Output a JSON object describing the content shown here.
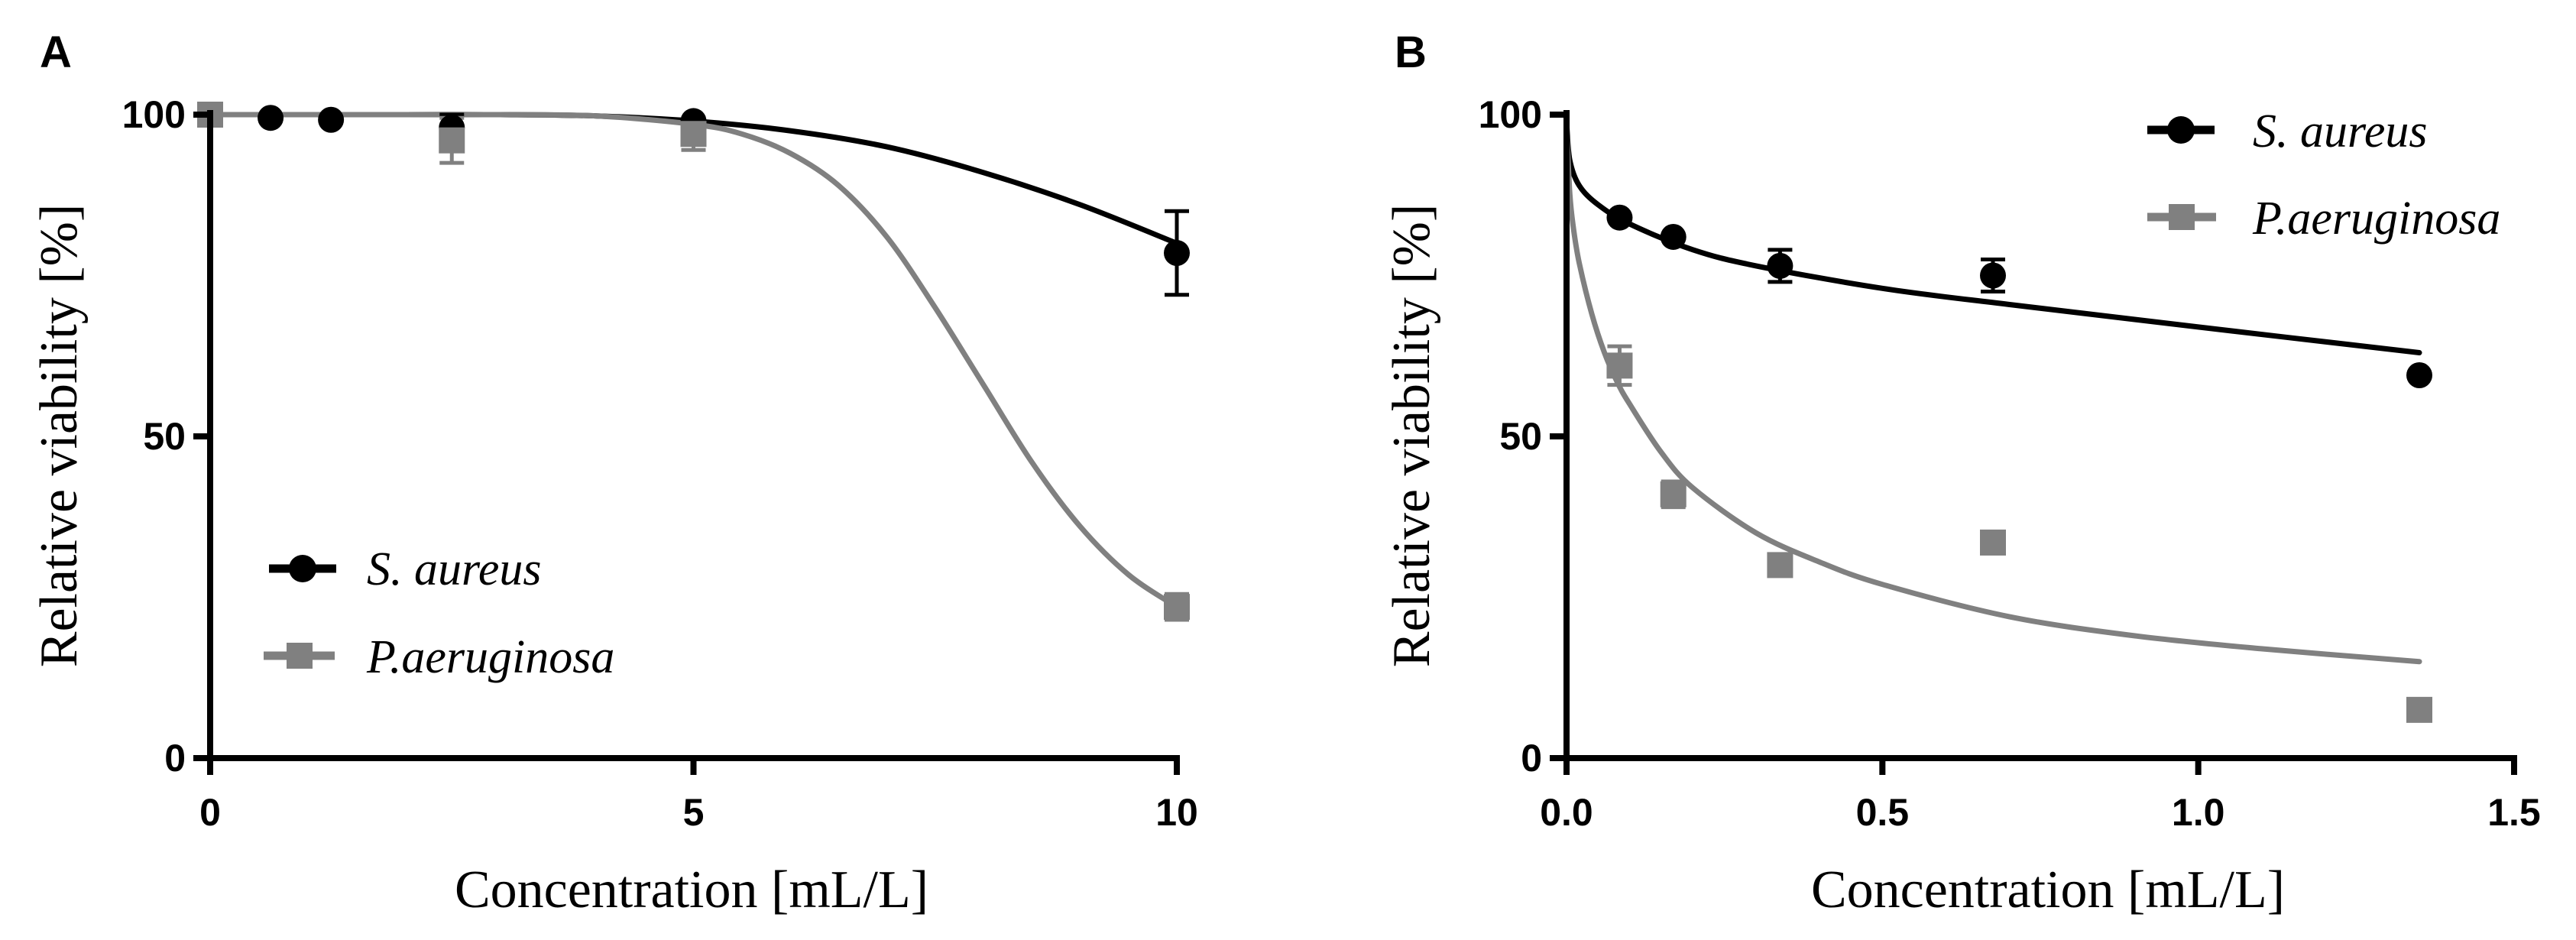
{
  "chart_data": [
    {
      "panel": "A",
      "type": "scatter",
      "xlabel": "Concentration [mL/L]",
      "ylabel": "Relative viability [%]",
      "xlim": [
        0,
        10
      ],
      "ylim": [
        0,
        100
      ],
      "xticks": [
        "0",
        "5",
        "10"
      ],
      "yticks": [
        "0",
        "50",
        "100"
      ],
      "grid": false,
      "legend_position": "bottom-left",
      "series": [
        {
          "name": "S. aureus",
          "marker": "circle",
          "color": "#000000",
          "x": [
            0,
            0.625,
            1.25,
            2.5,
            5,
            10
          ],
          "y": [
            100,
            99.5,
            99.2,
            98,
            99,
            78.5
          ],
          "err": [
            0,
            0,
            0,
            2,
            0,
            6.5
          ],
          "fit": {
            "x": [
              0,
              1,
              2,
              3,
              4,
              5,
              6,
              7,
              8,
              9,
              10
            ],
            "y": [
              100,
              100,
              100,
              100,
              99.8,
              99,
              97.5,
              95,
              91,
              86,
              80
            ]
          }
        },
        {
          "name": "P.aeruginosa",
          "marker": "square",
          "color": "#808080",
          "x": [
            0,
            2.5,
            5,
            10
          ],
          "y": [
            100,
            96,
            97,
            23.5
          ],
          "err": [
            0,
            3.5,
            2.5,
            2
          ],
          "fit": {
            "x": [
              0,
              1,
              2,
              3,
              4,
              5,
              5.5,
              6,
              6.5,
              7,
              7.5,
              8,
              8.5,
              9,
              9.5,
              10
            ],
            "y": [
              100,
              100,
              100,
              100,
              99.8,
              98.5,
              97,
              94,
              89,
              81,
              70,
              58,
              46,
              36,
              28.5,
              23.5
            ]
          }
        }
      ]
    },
    {
      "panel": "B",
      "type": "scatter",
      "xlabel": "Concentration [mL/L]",
      "ylabel": "Relative viability [%]",
      "xlim": [
        0,
        1.5
      ],
      "ylim": [
        0,
        100
      ],
      "xticks": [
        "0.0",
        "0.5",
        "1.0",
        "1.5"
      ],
      "yticks": [
        "0",
        "50",
        "100"
      ],
      "grid": false,
      "legend_position": "top-right",
      "series": [
        {
          "name": "S. aureus",
          "marker": "circle",
          "color": "#000000",
          "x": [
            0.084,
            0.169,
            0.338,
            0.675,
            1.35
          ],
          "y": [
            84,
            81,
            76.5,
            75,
            59.5
          ],
          "err": [
            0,
            0,
            2.5,
            2.5,
            0
          ],
          "fit": {
            "x": [
              0,
              0.005,
              0.02,
              0.05,
              0.1,
              0.2,
              0.3,
              0.5,
              0.7,
              1.0,
              1.35
            ],
            "y": [
              99,
              93,
              89,
              86,
              83,
              79,
              76.5,
              73,
              70.5,
              67,
              63
            ]
          }
        },
        {
          "name": "P.aeruginosa",
          "marker": "square",
          "color": "#808080",
          "x": [
            0.084,
            0.169,
            0.338,
            0.675,
            1.35
          ],
          "y": [
            61,
            41,
            30,
            33.5,
            7.5
          ],
          "err": [
            3,
            2,
            0,
            0,
            0
          ],
          "fit": {
            "x": [
              0,
              0.005,
              0.01,
              0.02,
              0.04,
              0.06,
              0.08,
              0.1,
              0.15,
              0.2,
              0.3,
              0.4,
              0.5,
              0.7,
              0.9,
              1.1,
              1.35
            ],
            "y": [
              98,
              88,
              83,
              77,
              69,
              63,
              58.5,
              55,
              47.5,
              42,
              35,
              30.5,
              27,
              22,
              19,
              17,
              15
            ]
          }
        }
      ]
    }
  ]
}
